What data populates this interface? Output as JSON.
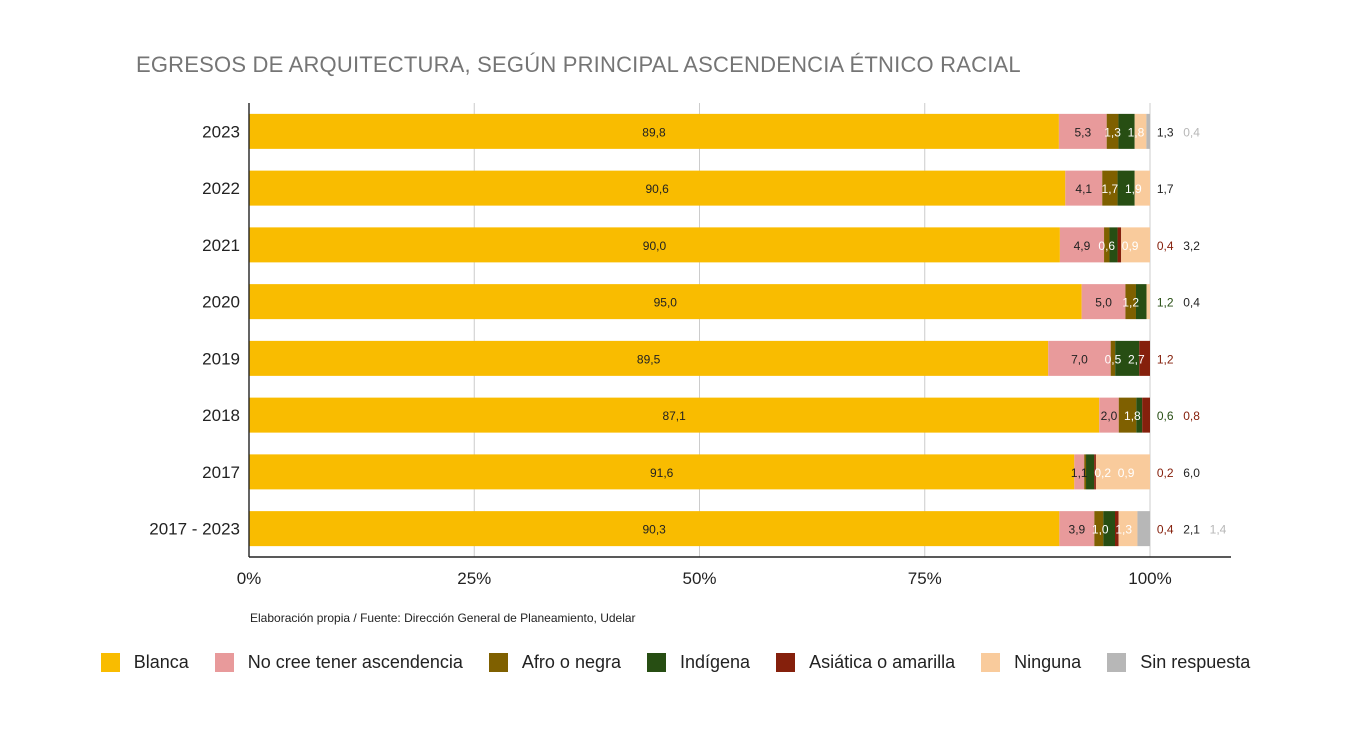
{
  "chart_data": {
    "type": "bar",
    "orientation": "horizontal",
    "stacked": true,
    "normalized": true,
    "title": "EGRESOS DE ARQUITECTURA, SEGÚN PRINCIPAL ASCENDENCIA ÉTNICO RACIAL",
    "source": "Elaboración propia / Fuente: Dirección General de Planeamiento, Udelar",
    "categories": [
      "2023",
      "2022",
      "2021",
      "2020",
      "2019",
      "2018",
      "2017",
      "2017 - 2023"
    ],
    "xticks": [
      "0%",
      "25%",
      "50%",
      "75%",
      "100%"
    ],
    "xlim": [
      0,
      100
    ],
    "legend_position": "bottom",
    "grid": true,
    "series": [
      {
        "name": "Blanca",
        "color": "#f9bc00",
        "label_color": "#222222",
        "values": [
          89.8,
          90.6,
          90.0,
          95.0,
          89.5,
          87.1,
          91.6,
          90.3
        ],
        "labels": [
          "89,8",
          "90,6",
          "90,0",
          "95,0",
          "89,5",
          "87,1",
          "91,6",
          "90,3"
        ]
      },
      {
        "name": "No cree tener ascendencia",
        "color": "#e89a9b",
        "label_color": "#222222",
        "values": [
          5.3,
          4.1,
          4.9,
          5.0,
          7.0,
          2.0,
          1.1,
          3.9
        ],
        "labels": [
          "5,3",
          "4,1",
          "4,9",
          "5,0",
          "7,0",
          "2,0",
          "1,1",
          "3,9"
        ]
      },
      {
        "name": "Afro o negra",
        "color": "#7f6000",
        "label_color": "#ffffff",
        "values": [
          1.3,
          1.7,
          0.6,
          1.2,
          0.5,
          1.8,
          0.2,
          1.0
        ],
        "labels": [
          "1,3",
          "1,7",
          "0,6",
          "1,2",
          "0,5",
          "1,8",
          "0,2",
          "1,0"
        ]
      },
      {
        "name": "Indígena",
        "color": "#274e13",
        "label_color": "#ffffff",
        "values": [
          1.8,
          1.9,
          0.9,
          1.2,
          2.7,
          0.6,
          0.9,
          1.3
        ],
        "labels": [
          "1,8",
          "1,9",
          "0,9",
          "1,2",
          "2,7",
          "0,6",
          "0,9",
          "1,3"
        ]
      },
      {
        "name": "Asiática o amarilla",
        "color": "#85200c",
        "label_color": "#85200c",
        "values": [
          0,
          0,
          0.4,
          0,
          1.2,
          0.8,
          0.2,
          0.4
        ],
        "labels": [
          "",
          "",
          "0,4",
          "",
          "1,2",
          "0,8",
          "0,2",
          "0,4"
        ]
      },
      {
        "name": "Ninguna",
        "color": "#f9cb9c",
        "label_color": "#222222",
        "values": [
          1.3,
          1.7,
          3.2,
          0.4,
          0,
          0,
          6.0,
          2.1
        ],
        "labels": [
          "1,3",
          "1,7",
          "3,2",
          "0,4",
          "",
          "",
          "6,0",
          "2,1"
        ]
      },
      {
        "name": "Sin respuesta",
        "color": "#b7b7b7",
        "label_color": "#b7b7b7",
        "values": [
          0.4,
          0,
          0,
          0,
          0,
          0,
          0,
          1.4
        ],
        "labels": [
          "0,4",
          "",
          "",
          "",
          "",
          "",
          "",
          "1,4"
        ]
      }
    ]
  }
}
